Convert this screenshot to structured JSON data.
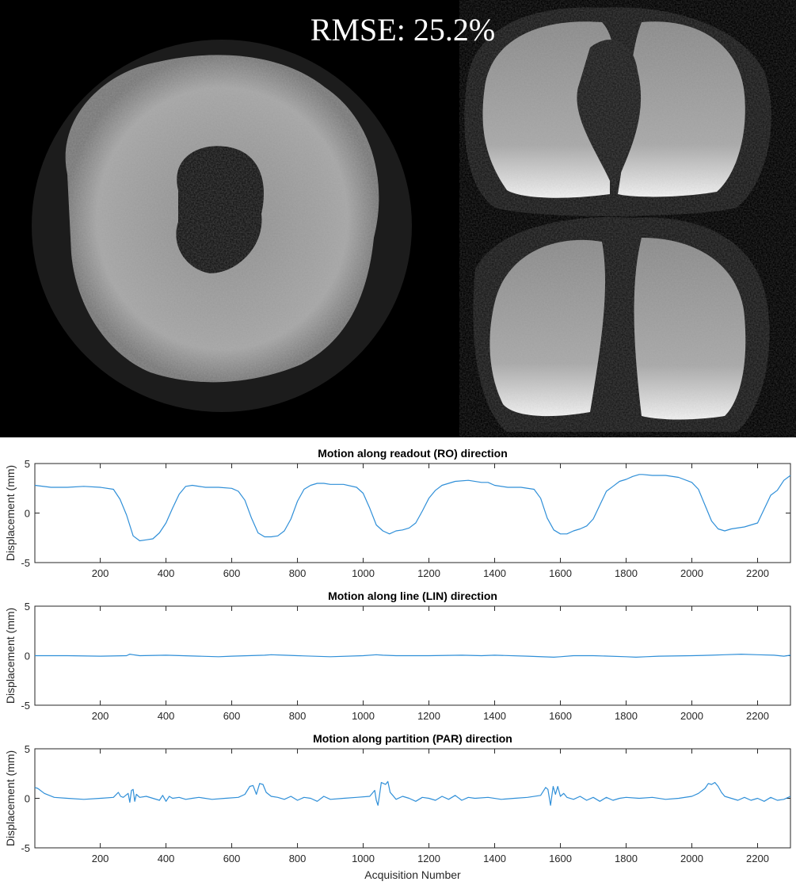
{
  "header": {
    "rmse_label": "RMSE: 25.2%"
  },
  "colors": {
    "series": "#2f8fd8",
    "axis": "#262626",
    "background": "#ffffff",
    "image_background": "#000000"
  },
  "chart_data": [
    {
      "type": "line",
      "title": "Motion along readout (RO) direction",
      "xlabel": "",
      "ylabel": "Displacement (mm)",
      "xlim": [
        1,
        2300
      ],
      "ylim": [
        -5,
        5
      ],
      "xticks": [
        200,
        400,
        600,
        800,
        1000,
        1200,
        1400,
        1600,
        1800,
        2000,
        2200
      ],
      "yticks": [
        -5,
        0,
        5
      ],
      "grid": false,
      "x": [
        1,
        50,
        100,
        150,
        200,
        240,
        260,
        280,
        300,
        320,
        340,
        360,
        380,
        400,
        420,
        440,
        460,
        480,
        520,
        560,
        600,
        620,
        640,
        660,
        680,
        700,
        720,
        740,
        760,
        780,
        800,
        820,
        840,
        860,
        880,
        900,
        940,
        980,
        1000,
        1020,
        1040,
        1060,
        1080,
        1100,
        1120,
        1140,
        1160,
        1180,
        1200,
        1220,
        1240,
        1260,
        1280,
        1320,
        1360,
        1380,
        1400,
        1440,
        1480,
        1520,
        1540,
        1560,
        1580,
        1600,
        1620,
        1640,
        1660,
        1680,
        1700,
        1720,
        1740,
        1760,
        1780,
        1800,
        1820,
        1840,
        1850,
        1880,
        1920,
        1960,
        2000,
        2020,
        2040,
        2060,
        2080,
        2100,
        2120,
        2160,
        2200,
        2220,
        2240,
        2260,
        2280,
        2300
      ],
      "y": [
        2.8,
        2.6,
        2.6,
        2.7,
        2.6,
        2.4,
        1.4,
        -0.2,
        -2.3,
        -2.8,
        -2.7,
        -2.6,
        -2.0,
        -1.0,
        0.5,
        1.9,
        2.7,
        2.8,
        2.6,
        2.6,
        2.5,
        2.2,
        1.3,
        -0.5,
        -2.0,
        -2.4,
        -2.4,
        -2.3,
        -1.8,
        -0.6,
        1.2,
        2.4,
        2.8,
        3.0,
        3.0,
        2.9,
        2.9,
        2.6,
        2.0,
        0.5,
        -1.2,
        -1.8,
        -2.1,
        -1.8,
        -1.7,
        -1.5,
        -1.0,
        0.2,
        1.5,
        2.3,
        2.8,
        3.0,
        3.2,
        3.3,
        3.1,
        3.1,
        2.8,
        2.6,
        2.6,
        2.4,
        1.5,
        -0.5,
        -1.7,
        -2.1,
        -2.1,
        -1.8,
        -1.6,
        -1.3,
        -0.6,
        0.8,
        2.2,
        2.7,
        3.2,
        3.4,
        3.7,
        3.9,
        3.9,
        3.8,
        3.8,
        3.6,
        3.1,
        2.4,
        0.8,
        -0.8,
        -1.6,
        -1.8,
        -1.6,
        -1.4,
        -1.0,
        0.4,
        1.8,
        2.3,
        3.3,
        3.8
      ]
    },
    {
      "type": "line",
      "title": "Motion along line (LIN) direction",
      "xlabel": "",
      "ylabel": "Displacement (mm)",
      "xlim": [
        1,
        2300
      ],
      "ylim": [
        -5,
        5
      ],
      "xticks": [
        200,
        400,
        600,
        800,
        1000,
        1200,
        1400,
        1600,
        1800,
        2000,
        2200
      ],
      "yticks": [
        -5,
        0,
        5
      ],
      "grid": false,
      "x": [
        1,
        100,
        200,
        280,
        290,
        300,
        310,
        320,
        400,
        450,
        500,
        560,
        600,
        700,
        720,
        760,
        800,
        900,
        1000,
        1040,
        1060,
        1100,
        1200,
        1300,
        1360,
        1400,
        1500,
        1580,
        1600,
        1640,
        1700,
        1800,
        1830,
        1860,
        1900,
        2000,
        2060,
        2100,
        2150,
        2200,
        2250,
        2280,
        2300
      ],
      "y": [
        0.0,
        0.0,
        -0.05,
        0.0,
        0.15,
        0.1,
        0.05,
        0.0,
        0.05,
        0.0,
        -0.05,
        -0.1,
        -0.05,
        0.05,
        0.1,
        0.05,
        0.0,
        -0.1,
        0.0,
        0.1,
        0.05,
        0.0,
        0.0,
        0.05,
        0.0,
        0.05,
        -0.05,
        -0.15,
        -0.1,
        0.0,
        0.0,
        -0.1,
        -0.15,
        -0.1,
        -0.05,
        0.0,
        0.05,
        0.1,
        0.15,
        0.1,
        0.05,
        -0.05,
        0.05
      ]
    },
    {
      "type": "line",
      "title": "Motion along partition (PAR) direction",
      "xlabel": "Acquisition Number",
      "ylabel": "Displacement (mm)",
      "xlim": [
        1,
        2300
      ],
      "ylim": [
        -5,
        5
      ],
      "xticks": [
        200,
        400,
        600,
        800,
        1000,
        1200,
        1400,
        1600,
        1800,
        2000,
        2200
      ],
      "yticks": [
        -5,
        0,
        5
      ],
      "grid": false,
      "x": [
        1,
        10,
        30,
        60,
        100,
        150,
        200,
        240,
        255,
        262,
        270,
        285,
        290,
        295,
        300,
        305,
        310,
        320,
        340,
        360,
        380,
        390,
        400,
        410,
        420,
        440,
        460,
        480,
        500,
        540,
        580,
        620,
        640,
        655,
        665,
        675,
        685,
        695,
        705,
        720,
        740,
        760,
        780,
        800,
        820,
        840,
        860,
        880,
        900,
        940,
        980,
        1020,
        1035,
        1040,
        1045,
        1050,
        1055,
        1062,
        1068,
        1075,
        1082,
        1090,
        1100,
        1120,
        1140,
        1160,
        1180,
        1200,
        1220,
        1240,
        1260,
        1280,
        1300,
        1320,
        1340,
        1380,
        1420,
        1460,
        1500,
        1540,
        1555,
        1562,
        1570,
        1578,
        1585,
        1592,
        1600,
        1610,
        1620,
        1640,
        1660,
        1680,
        1700,
        1720,
        1740,
        1760,
        1780,
        1800,
        1840,
        1880,
        1920,
        1960,
        2000,
        2020,
        2040,
        2050,
        2060,
        2070,
        2080,
        2090,
        2100,
        2120,
        2140,
        2160,
        2180,
        2200,
        2220,
        2240,
        2260,
        2280,
        2300
      ],
      "y": [
        1.1,
        1.0,
        0.5,
        0.1,
        0.0,
        -0.1,
        0.0,
        0.1,
        0.6,
        0.2,
        0.1,
        0.5,
        -0.4,
        0.8,
        0.9,
        -0.3,
        0.4,
        0.1,
        0.2,
        0.0,
        -0.2,
        0.3,
        -0.3,
        0.2,
        0.0,
        0.1,
        -0.1,
        0.0,
        0.1,
        -0.1,
        0.0,
        0.1,
        0.4,
        1.2,
        1.3,
        0.4,
        1.5,
        1.4,
        0.6,
        0.2,
        0.1,
        -0.1,
        0.2,
        -0.2,
        0.1,
        0.0,
        -0.3,
        0.2,
        -0.1,
        0.0,
        0.1,
        0.2,
        0.8,
        -0.2,
        -0.7,
        0.4,
        1.6,
        1.5,
        1.4,
        1.7,
        0.6,
        0.3,
        -0.1,
        0.2,
        0.0,
        -0.3,
        0.1,
        0.0,
        -0.2,
        0.2,
        -0.1,
        0.3,
        -0.2,
        0.1,
        0.0,
        0.1,
        -0.1,
        0.0,
        0.1,
        0.3,
        1.1,
        0.9,
        -0.7,
        1.2,
        0.4,
        1.2,
        0.2,
        0.5,
        0.1,
        -0.1,
        0.2,
        -0.2,
        0.1,
        -0.3,
        0.1,
        -0.2,
        0.0,
        0.1,
        0.0,
        0.1,
        -0.1,
        0.0,
        0.2,
        0.5,
        1.0,
        1.5,
        1.4,
        1.6,
        1.2,
        0.6,
        0.2,
        0.0,
        -0.2,
        0.1,
        -0.2,
        0.0,
        -0.3,
        0.1,
        -0.2,
        -0.1,
        0.2
      ]
    }
  ]
}
